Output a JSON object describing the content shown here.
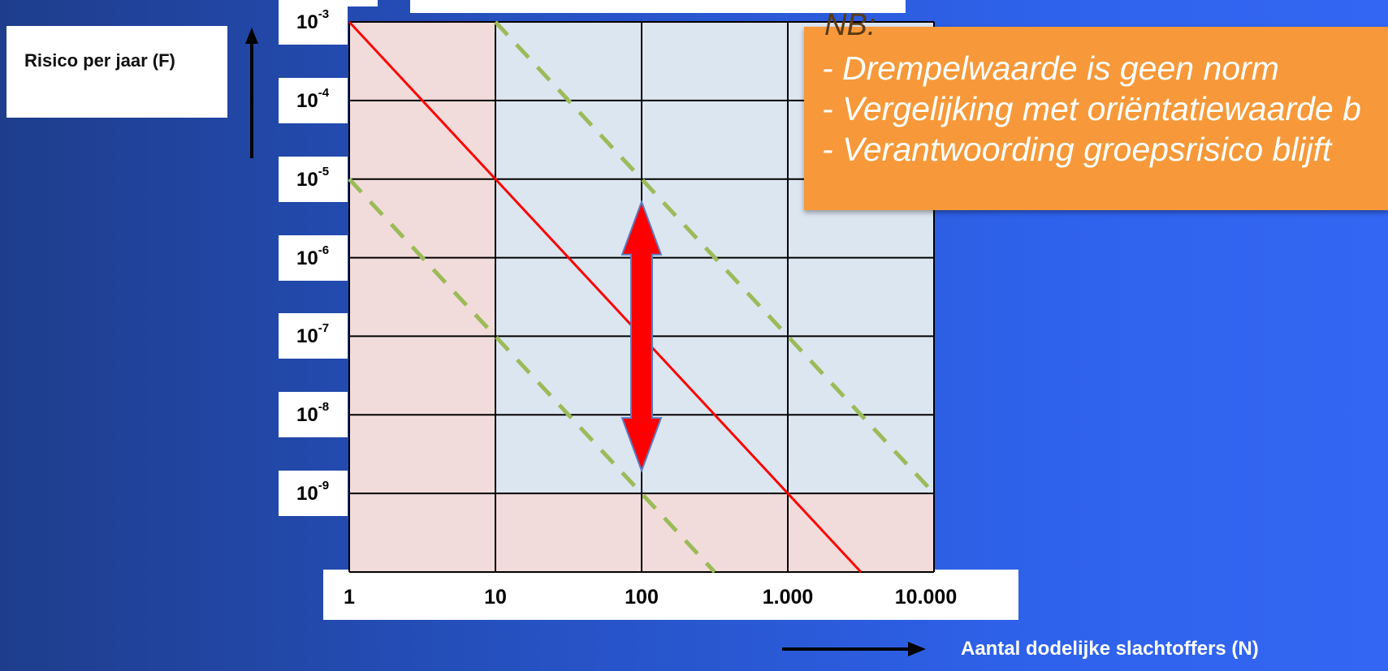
{
  "chart_data": {
    "type": "line",
    "xscale": "log",
    "yscale": "log",
    "xlabel": "Aantal dodelijke slachtoffers (N)",
    "ylabel": "Risico per jaar (F)",
    "xlim": [
      1,
      10000
    ],
    "ylim": [
      1e-10,
      0.001
    ],
    "x_ticks": [
      {
        "value": 1,
        "label": "1"
      },
      {
        "value": 10,
        "label": "10"
      },
      {
        "value": 100,
        "label": "100"
      },
      {
        "value": 1000,
        "label": "1.000"
      },
      {
        "value": 10000,
        "label": "10.000"
      }
    ],
    "y_ticks": [
      {
        "value": 0.001,
        "base": "10",
        "exp": "-3"
      },
      {
        "value": 0.0001,
        "base": "10",
        "exp": "-4"
      },
      {
        "value": 1e-05,
        "base": "10",
        "exp": "-5"
      },
      {
        "value": 1e-06,
        "base": "10",
        "exp": "-6"
      },
      {
        "value": 1e-07,
        "base": "10",
        "exp": "-7"
      },
      {
        "value": 1e-08,
        "base": "10",
        "exp": "-8"
      },
      {
        "value": 1e-09,
        "base": "10",
        "exp": "-9"
      }
    ],
    "grid": true,
    "series": [
      {
        "style": "solid",
        "color": "#ff0000",
        "x": [
          1,
          3162
        ],
        "y": [
          0.001,
          1e-10
        ]
      },
      {
        "style": "dashed",
        "color": "#9bbb59",
        "x": [
          10,
          10000
        ],
        "y": [
          0.001,
          1e-09
        ]
      },
      {
        "style": "dashed",
        "color": "#9bbb59",
        "x": [
          1,
          316
        ],
        "y": [
          1e-05,
          1e-10
        ]
      }
    ],
    "bands": [
      {
        "x_range": [
          1,
          10
        ],
        "color": "#f2dcdb"
      },
      {
        "x_range": [
          10,
          10000
        ],
        "y_range": [
          1e-09,
          0.001
        ],
        "color": "#dce6f1"
      },
      {
        "x_range": [
          10,
          10000
        ],
        "y_range": [
          1e-10,
          1e-09
        ],
        "color": "#f2dcdb"
      }
    ],
    "double_arrow": {
      "x": 100,
      "y_range": [
        1e-09,
        1e-05
      ],
      "color": "#ff0000"
    }
  },
  "note": {
    "heading": "NB:",
    "lines": [
      "- Drempelwaarde is geen norm",
      "- Vergelijking met oriëntatiewaarde b",
      "- Verantwoording groepsrisico blijft"
    ],
    "color": "#f7993a"
  },
  "colors": {
    "background": "#2652c4",
    "grid": "#000000",
    "axis_arrows": "#000000"
  }
}
